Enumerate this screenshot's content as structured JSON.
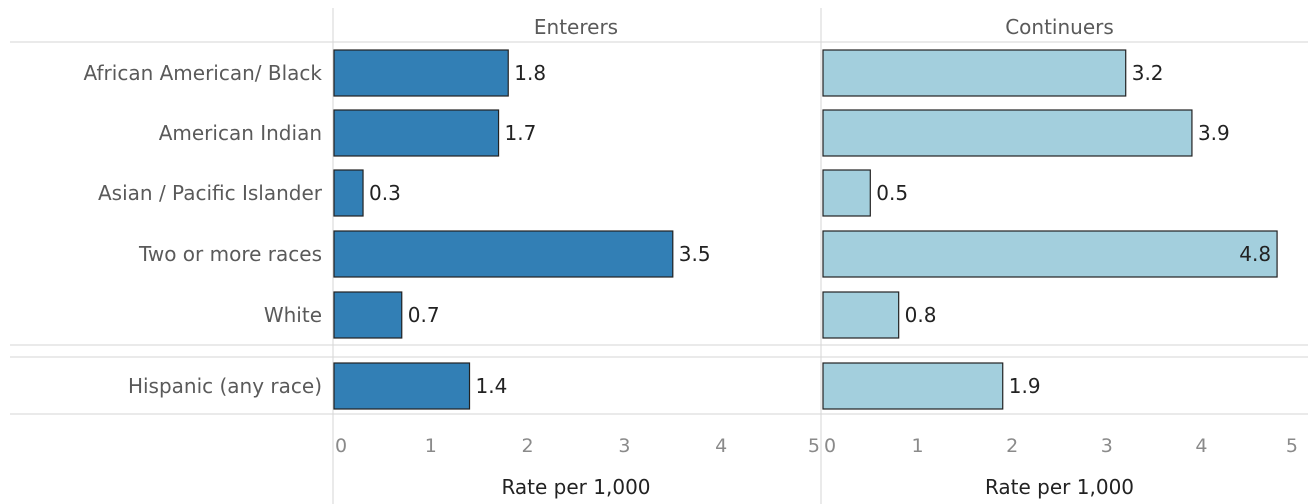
{
  "chart_data": {
    "type": "bar",
    "orientation": "horizontal",
    "categories": [
      "African American/ Black",
      "American Indian",
      "Asian / Pacific Islander",
      "Two or more races",
      "White",
      "Hispanic (any race)"
    ],
    "groups": [
      [
        "African American/ Black",
        "American Indian",
        "Asian / Pacific Islander",
        "Two or more races",
        "White"
      ],
      [
        "Hispanic (any race)"
      ]
    ],
    "series": [
      {
        "name": "Enterers",
        "color": "#327fb5",
        "values": [
          1.8,
          1.7,
          0.3,
          3.5,
          0.7,
          1.4
        ],
        "labels": [
          "1.8",
          "1.7",
          "0.3",
          "3.5",
          "0.7",
          "1.4"
        ]
      },
      {
        "name": "Continuers",
        "color": "#a3cfdd",
        "values": [
          3.2,
          3.9,
          0.5,
          4.8,
          0.8,
          1.9
        ],
        "labels": [
          "3.2",
          "3.9",
          "0.5",
          "4.8",
          "0.8",
          "1.9"
        ]
      }
    ],
    "xlabel": "Rate per 1,000",
    "xlim": [
      0,
      5
    ],
    "xticks": [
      "0",
      "1",
      "2",
      "3",
      "4",
      "5"
    ],
    "grid": false
  }
}
